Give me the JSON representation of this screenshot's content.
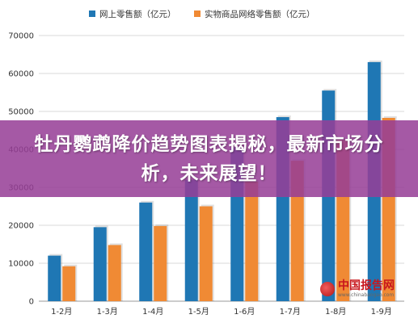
{
  "banner": {
    "text": "牡丹鹦鹉降价趋势图表揭秘，最新市场分析，未来展望！"
  },
  "watermark": {
    "name": "中国报告网",
    "url": "www.chinabaogao.com"
  },
  "chart_data": {
    "type": "bar",
    "categories": [
      "1-2月",
      "1-3月",
      "1-4月",
      "1-5月",
      "1-6月",
      "1-7月",
      "1-8月",
      "1-9月"
    ],
    "series": [
      {
        "name": "网上零售额（亿元）",
        "color": "#1f77b4",
        "values": [
          12000,
          19500,
          26000,
          32000,
          40500,
          48500,
          55500,
          63000
        ]
      },
      {
        "name": "实物商品网络零售额（亿元）",
        "color": "#f08a34",
        "values": [
          9200,
          14800,
          19800,
          25000,
          31500,
          37000,
          42500,
          48300
        ]
      }
    ],
    "yticks": [
      0,
      10000,
      20000,
      30000,
      40000,
      50000,
      60000,
      70000
    ],
    "ylim": [
      0,
      70000
    ],
    "grid": true,
    "legend_position": "top"
  }
}
